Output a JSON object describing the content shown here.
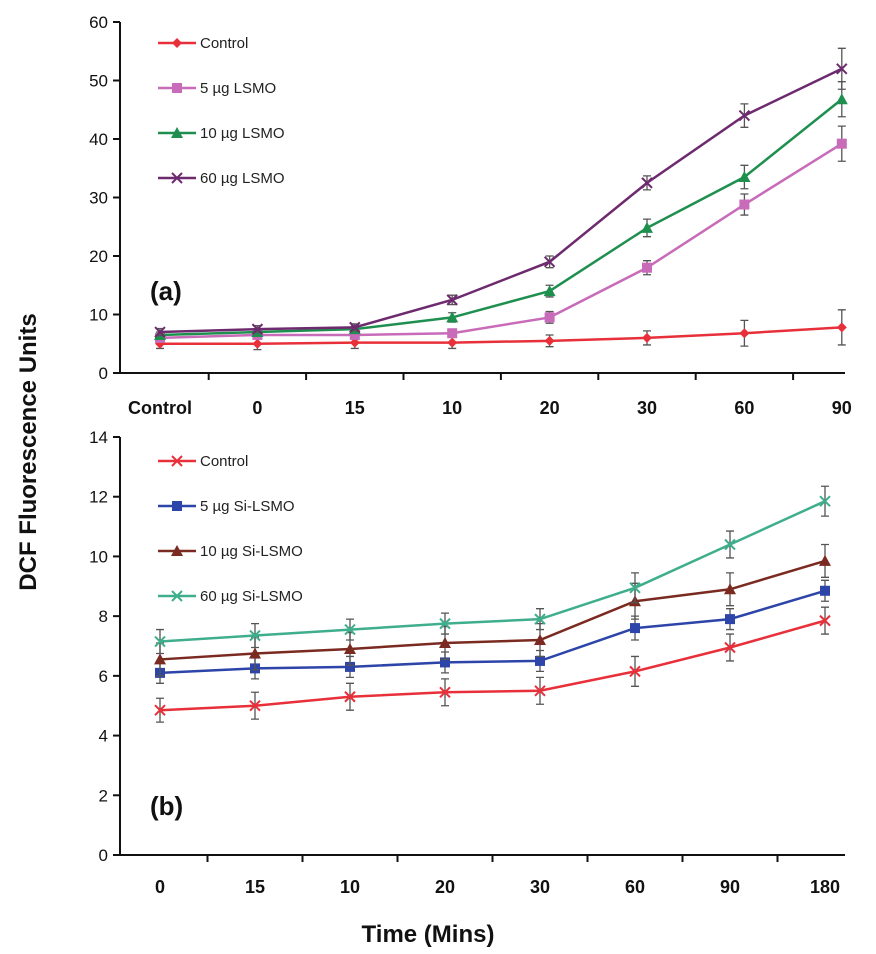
{
  "ylabel": "DCF Fluorescence Units",
  "xlabel": "Time (Mins)",
  "chart_data": [
    {
      "type": "line",
      "panel_label": "(a)",
      "categories": [
        "Control",
        "0",
        "15",
        "10",
        "20",
        "30",
        "60",
        "90"
      ],
      "ylim": [
        0,
        60
      ],
      "yticks": [
        0,
        10,
        20,
        30,
        40,
        50,
        60
      ],
      "legend_position": "top-left",
      "series": [
        {
          "name": "Control",
          "color": "#e8303a",
          "marker": "diamond",
          "values": [
            5,
            5,
            5.2,
            5.2,
            5.5,
            6,
            6.8,
            7.8
          ],
          "errors": [
            0.8,
            1,
            1,
            1,
            1,
            1.2,
            2.2,
            3
          ]
        },
        {
          "name": "5 µg LSMO",
          "color": "#c86bb8",
          "marker": "square",
          "values": [
            6,
            6.5,
            6.5,
            6.8,
            9.5,
            18,
            28.8,
            39.2
          ],
          "errors": [
            0.5,
            0.5,
            0.5,
            0.6,
            1,
            1.2,
            1.8,
            3
          ]
        },
        {
          "name": "10 µg LSMO",
          "color": "#1e8f4e",
          "marker": "triangle",
          "values": [
            6.5,
            7,
            7.5,
            9.5,
            14,
            24.8,
            33.5,
            46.8
          ],
          "errors": [
            0.5,
            0.5,
            0.5,
            0.8,
            1,
            1.5,
            2,
            3
          ]
        },
        {
          "name": "60 µg LSMO",
          "color": "#6e2a6e",
          "marker": "x",
          "values": [
            7,
            7.5,
            7.8,
            12.5,
            19,
            32.5,
            44,
            52
          ],
          "errors": [
            0.6,
            0.6,
            0.6,
            0.8,
            1,
            1.2,
            2,
            3.5
          ]
        }
      ]
    },
    {
      "type": "line",
      "panel_label": "(b)",
      "categories": [
        "0",
        "15",
        "10",
        "20",
        "30",
        "60",
        "90",
        "180"
      ],
      "ylim": [
        0,
        14
      ],
      "yticks": [
        0,
        2,
        4,
        6,
        8,
        10,
        12,
        14
      ],
      "legend_position": "top-left",
      "series": [
        {
          "name": "Control",
          "color": "#e8303a",
          "marker": "x",
          "values": [
            4.85,
            5,
            5.3,
            5.45,
            5.5,
            6.15,
            6.95,
            7.85
          ],
          "errors": [
            0.4,
            0.45,
            0.45,
            0.45,
            0.45,
            0.5,
            0.45,
            0.45
          ]
        },
        {
          "name": "5 µg Si-LSMO",
          "color": "#2d44a8",
          "marker": "square",
          "values": [
            6.1,
            6.25,
            6.3,
            6.45,
            6.5,
            7.6,
            7.9,
            8.85
          ],
          "errors": [
            0.35,
            0.35,
            0.35,
            0.35,
            0.35,
            0.4,
            0.35,
            0.35
          ]
        },
        {
          "name": "10 µg Si-LSMO",
          "color": "#7a2a20",
          "marker": "triangle",
          "values": [
            6.55,
            6.75,
            6.9,
            7.1,
            7.2,
            8.5,
            8.9,
            9.85
          ],
          "errors": [
            0.55,
            0.55,
            0.55,
            0.55,
            0.55,
            0.6,
            0.55,
            0.55
          ]
        },
        {
          "name": "60 µg Si-LSMO",
          "color": "#3fae8c",
          "marker": "x",
          "values": [
            7.15,
            7.35,
            7.55,
            7.75,
            7.9,
            8.95,
            10.4,
            11.85
          ],
          "errors": [
            0.4,
            0.4,
            0.35,
            0.35,
            0.35,
            0.5,
            0.45,
            0.5
          ]
        }
      ]
    }
  ]
}
